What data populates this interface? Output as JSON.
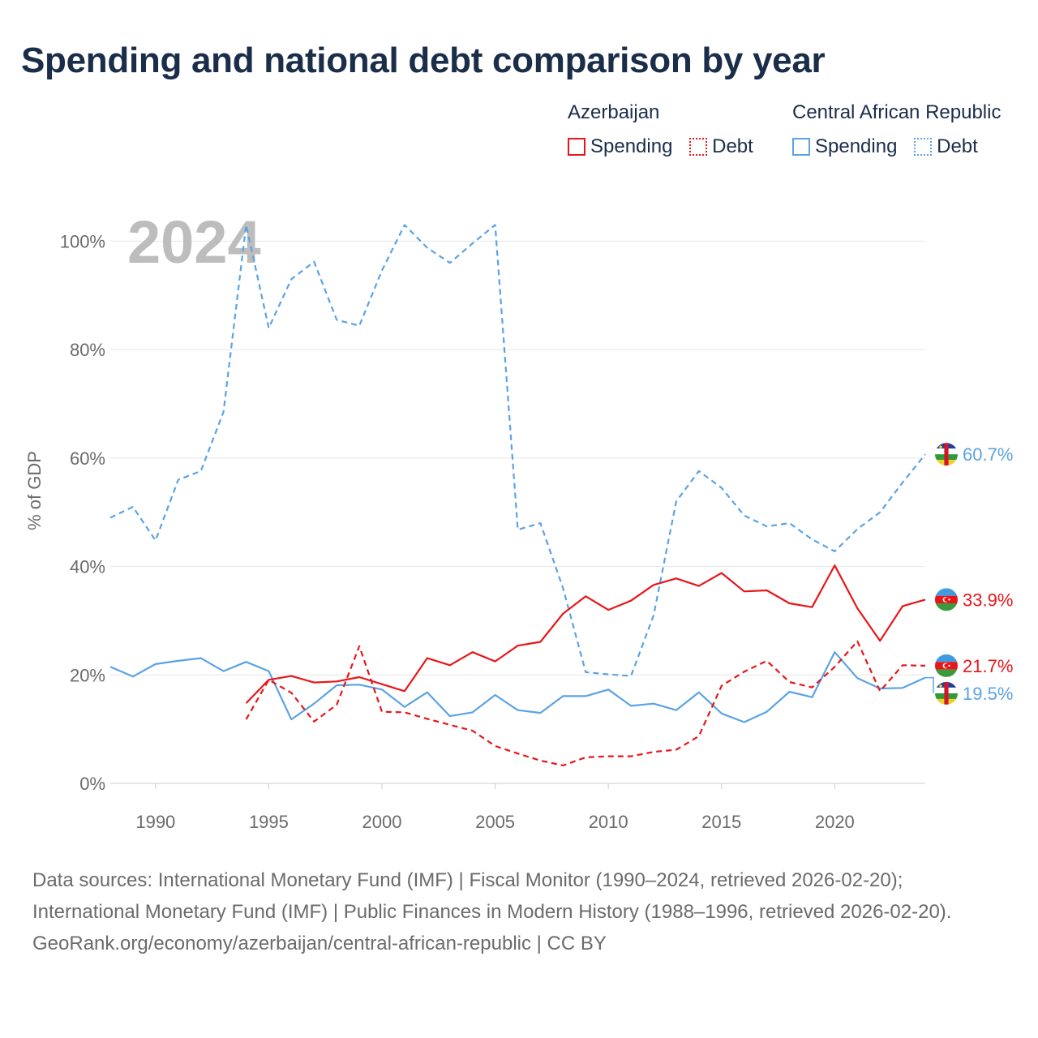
{
  "title": "Spending and national debt comparison by year",
  "legend": {
    "groups": [
      {
        "country": "Azerbaijan",
        "spending": "Spending",
        "debt": "Debt",
        "color": "#e8161a"
      },
      {
        "country": "Central African Republic",
        "spending": "Spending",
        "debt": "Debt",
        "color": "#5ba3e4"
      }
    ]
  },
  "sources": {
    "line1": "Data sources: International Monetary Fund (IMF) | Fiscal Monitor (1990–2024, retrieved 2026-02-20); International Monetary Fund (IMF) | Public Finances in Modern History (1988–1996, retrieved 2026-02-20).",
    "line2": "GeoRank.org/economy/azerbaijan/central-african-republic | CC BY"
  },
  "chart_data": {
    "type": "line",
    "title": "Spending and national debt comparison by year",
    "year_label": "2024",
    "ylabel": "% of GDP",
    "xlabel": "",
    "xlim": [
      1988,
      2024
    ],
    "ylim": [
      0,
      105
    ],
    "xticks": [
      1990,
      1995,
      2000,
      2005,
      2010,
      2015,
      2020
    ],
    "xtick_labels": [
      "1990",
      "1995",
      "2000",
      "2005",
      "2010",
      "2015",
      "2020"
    ],
    "yticks": [
      0,
      20,
      40,
      60,
      80,
      100
    ],
    "ytick_labels": [
      "0%",
      "20%",
      "40%",
      "60%",
      "80%",
      "100%"
    ],
    "grid": true,
    "series": [
      {
        "name": "Central African Republic Debt",
        "country": "Central African Republic",
        "color": "#5ba3e4",
        "dash": "dashed",
        "end_label": "60.7%",
        "points": [
          [
            1988,
            49
          ],
          [
            1989,
            51
          ],
          [
            1990,
            44.8
          ],
          [
            1991,
            56
          ],
          [
            1992,
            57.6
          ],
          [
            1993,
            68.5
          ],
          [
            1994,
            103
          ],
          [
            1995,
            84
          ],
          [
            1996,
            93
          ],
          [
            1997,
            96.2
          ],
          [
            1998,
            85.5
          ],
          [
            1999,
            84.4
          ],
          [
            2000,
            94.6
          ],
          [
            2001,
            103
          ],
          [
            2002,
            98.8
          ],
          [
            2003,
            96
          ],
          [
            2004,
            99.6
          ],
          [
            2005,
            103
          ],
          [
            2006,
            46.8
          ],
          [
            2007,
            48
          ],
          [
            2008,
            36
          ],
          [
            2009,
            20.5
          ],
          [
            2010,
            20.1
          ],
          [
            2011,
            19.8
          ],
          [
            2012,
            31
          ],
          [
            2013,
            52
          ],
          [
            2014,
            57.6
          ],
          [
            2015,
            54.5
          ],
          [
            2016,
            49.4
          ],
          [
            2017,
            47.4
          ],
          [
            2018,
            48
          ],
          [
            2019,
            45
          ],
          [
            2020,
            42.8
          ],
          [
            2021,
            46.9
          ],
          [
            2022,
            50
          ],
          [
            2023,
            55.5
          ],
          [
            2024,
            60.7
          ]
        ]
      },
      {
        "name": "Central African Republic Spending",
        "country": "Central African Republic",
        "color": "#5ba3e4",
        "dash": "solid",
        "end_label": "19.5%",
        "points": [
          [
            1988,
            21.5
          ],
          [
            1989,
            19.7
          ],
          [
            1990,
            22
          ],
          [
            1991,
            22.6
          ],
          [
            1992,
            23.1
          ],
          [
            1993,
            20.7
          ],
          [
            1994,
            22.4
          ],
          [
            1995,
            20.7
          ],
          [
            1996,
            11.8
          ],
          [
            1997,
            14.7
          ],
          [
            1998,
            18.1
          ],
          [
            1999,
            18.2
          ],
          [
            2000,
            17.3
          ],
          [
            2001,
            14.1
          ],
          [
            2002,
            16.8
          ],
          [
            2003,
            12.4
          ],
          [
            2004,
            13.1
          ],
          [
            2005,
            16.3
          ],
          [
            2006,
            13.5
          ],
          [
            2007,
            13
          ],
          [
            2008,
            16.1
          ],
          [
            2009,
            16.1
          ],
          [
            2010,
            17.3
          ],
          [
            2011,
            14.3
          ],
          [
            2012,
            14.7
          ],
          [
            2013,
            13.5
          ],
          [
            2014,
            16.8
          ],
          [
            2015,
            12.9
          ],
          [
            2016,
            11.3
          ],
          [
            2017,
            13.2
          ],
          [
            2018,
            16.9
          ],
          [
            2019,
            15.9
          ],
          [
            2020,
            24.2
          ],
          [
            2021,
            19.4
          ],
          [
            2022,
            17.5
          ],
          [
            2023,
            17.6
          ],
          [
            2024,
            19.5
          ]
        ]
      },
      {
        "name": "Azerbaijan Spending",
        "country": "Azerbaijan",
        "color": "#e8161a",
        "dash": "solid",
        "end_label": "33.9%",
        "points": [
          [
            1994,
            14.8
          ],
          [
            1995,
            19.1
          ],
          [
            1996,
            19.8
          ],
          [
            1997,
            18.6
          ],
          [
            1998,
            18.8
          ],
          [
            1999,
            19.6
          ],
          [
            2000,
            18.3
          ],
          [
            2001,
            17
          ],
          [
            2002,
            23.1
          ],
          [
            2003,
            21.8
          ],
          [
            2004,
            24.2
          ],
          [
            2005,
            22.5
          ],
          [
            2006,
            25.4
          ],
          [
            2007,
            26.1
          ],
          [
            2008,
            31.3
          ],
          [
            2009,
            34.5
          ],
          [
            2010,
            32
          ],
          [
            2011,
            33.7
          ],
          [
            2012,
            36.6
          ],
          [
            2013,
            37.8
          ],
          [
            2014,
            36.4
          ],
          [
            2015,
            38.8
          ],
          [
            2016,
            35.4
          ],
          [
            2017,
            35.6
          ],
          [
            2018,
            33.2
          ],
          [
            2019,
            32.5
          ],
          [
            2020,
            40.2
          ],
          [
            2021,
            32.3
          ],
          [
            2022,
            26.3
          ],
          [
            2023,
            32.7
          ],
          [
            2024,
            33.9
          ]
        ]
      },
      {
        "name": "Azerbaijan Debt",
        "country": "Azerbaijan",
        "color": "#e8161a",
        "dash": "dashed",
        "end_label": "21.7%",
        "points": [
          [
            1994,
            11.8
          ],
          [
            1995,
            19.1
          ],
          [
            1996,
            16.7
          ],
          [
            1997,
            11.4
          ],
          [
            1998,
            14.5
          ],
          [
            1999,
            25.3
          ],
          [
            2000,
            13.2
          ],
          [
            2001,
            13.1
          ],
          [
            2002,
            11.9
          ],
          [
            2003,
            10.8
          ],
          [
            2004,
            9.7
          ],
          [
            2005,
            6.9
          ],
          [
            2006,
            5.5
          ],
          [
            2007,
            4.2
          ],
          [
            2008,
            3.3
          ],
          [
            2009,
            4.8
          ],
          [
            2010,
            5
          ],
          [
            2011,
            5
          ],
          [
            2012,
            5.8
          ],
          [
            2013,
            6.2
          ],
          [
            2014,
            8.7
          ],
          [
            2015,
            18
          ],
          [
            2016,
            20.6
          ],
          [
            2017,
            22.6
          ],
          [
            2018,
            18.7
          ],
          [
            2019,
            17.7
          ],
          [
            2020,
            21.5
          ],
          [
            2021,
            26.2
          ],
          [
            2022,
            17
          ],
          [
            2023,
            21.8
          ],
          [
            2024,
            21.7
          ]
        ]
      }
    ]
  }
}
